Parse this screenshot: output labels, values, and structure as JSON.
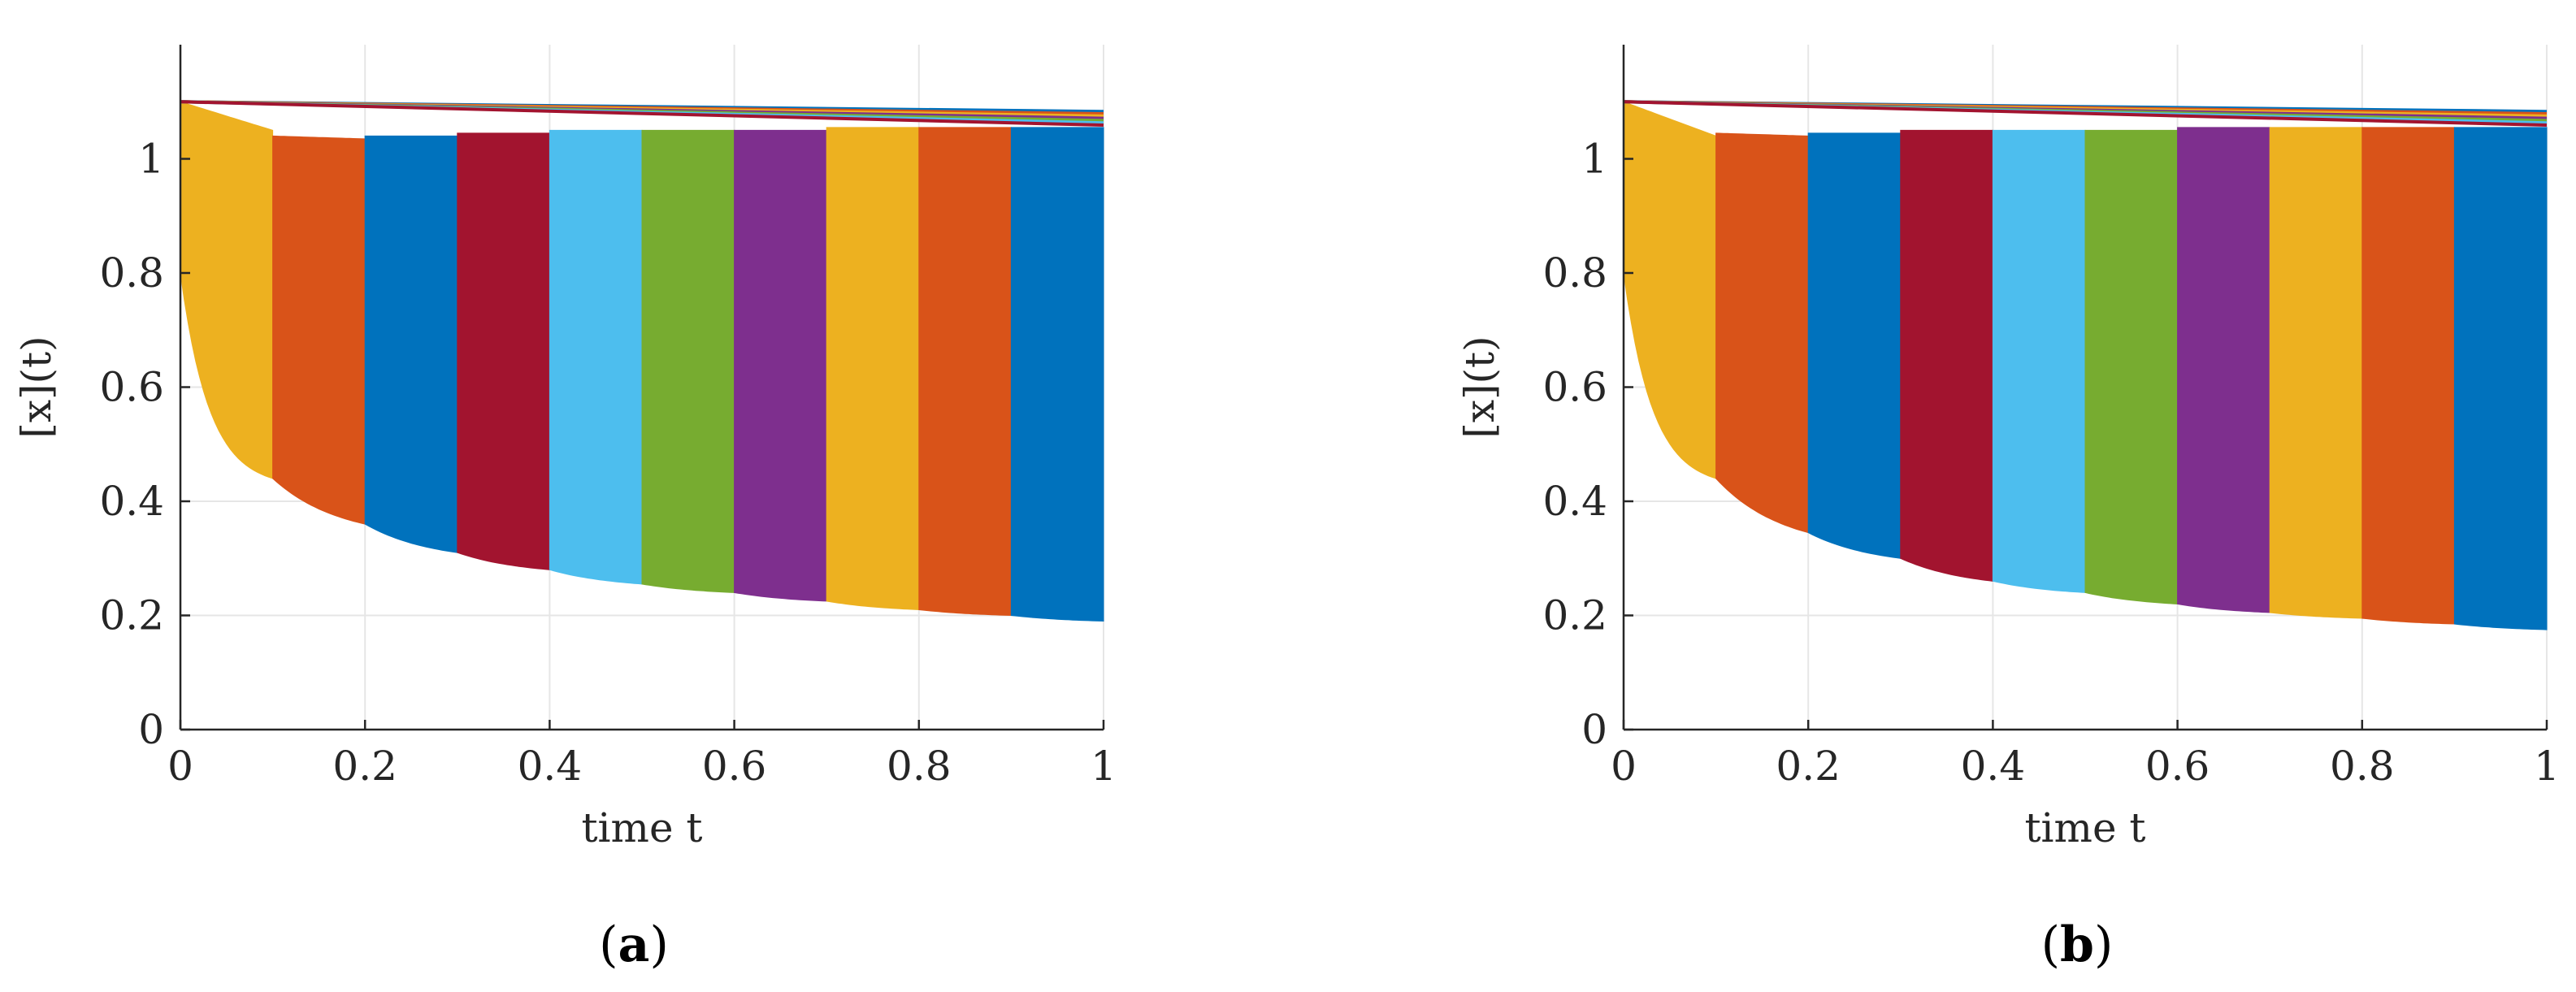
{
  "panels": [
    {
      "id": "a",
      "label_open": "(",
      "label_letter": "a",
      "label_close": ")"
    },
    {
      "id": "b",
      "label_open": "(",
      "label_letter": "b",
      "label_close": ")"
    }
  ],
  "chart_data": [
    {
      "type": "area",
      "panel": "a",
      "xlabel": "time t",
      "ylabel": "[x](t)",
      "xlim": [
        0,
        1
      ],
      "ylim": [
        0,
        1.2
      ],
      "xticks": [
        "0",
        "0.2",
        "0.4",
        "0.6",
        "0.8",
        "1"
      ],
      "yticks": [
        "0",
        "0.2",
        "0.4",
        "0.6",
        "0.8",
        "1"
      ],
      "grid": true,
      "bands": [
        {
          "t0": 0.0,
          "t1": 0.1,
          "upper": [
            1.1,
            1.05
          ],
          "lower": [
            0.8,
            0.44
          ],
          "color": "#EDB120"
        },
        {
          "t0": 0.1,
          "t1": 0.2,
          "upper": [
            1.04,
            1.035
          ],
          "lower": [
            0.44,
            0.36
          ],
          "color": "#D95319"
        },
        {
          "t0": 0.2,
          "t1": 0.3,
          "upper": [
            1.04,
            1.04
          ],
          "lower": [
            0.36,
            0.31
          ],
          "color": "#0072BD"
        },
        {
          "t0": 0.3,
          "t1": 0.4,
          "upper": [
            1.045,
            1.045
          ],
          "lower": [
            0.31,
            0.28
          ],
          "color": "#A2142F"
        },
        {
          "t0": 0.4,
          "t1": 0.5,
          "upper": [
            1.05,
            1.05
          ],
          "lower": [
            0.28,
            0.255
          ],
          "color": "#4DBEEE"
        },
        {
          "t0": 0.5,
          "t1": 0.6,
          "upper": [
            1.05,
            1.05
          ],
          "lower": [
            0.255,
            0.24
          ],
          "color": "#77AC30"
        },
        {
          "t0": 0.6,
          "t1": 0.7,
          "upper": [
            1.05,
            1.05
          ],
          "lower": [
            0.24,
            0.225
          ],
          "color": "#7E2F8E"
        },
        {
          "t0": 0.7,
          "t1": 0.8,
          "upper": [
            1.055,
            1.055
          ],
          "lower": [
            0.225,
            0.21
          ],
          "color": "#EDB120"
        },
        {
          "t0": 0.8,
          "t1": 0.9,
          "upper": [
            1.055,
            1.055
          ],
          "lower": [
            0.21,
            0.2
          ],
          "color": "#D95319"
        },
        {
          "t0": 0.9,
          "t1": 1.0,
          "upper": [
            1.055,
            1.055
          ],
          "lower": [
            0.2,
            0.19
          ],
          "color": "#0072BD"
        }
      ],
      "envelope_top": [
        1.1,
        1.055
      ]
    },
    {
      "type": "area",
      "panel": "b",
      "xlabel": "time t",
      "ylabel": "[x](t)",
      "xlim": [
        0,
        1
      ],
      "ylim": [
        0,
        1.2
      ],
      "xticks": [
        "0",
        "0.2",
        "0.4",
        "0.6",
        "0.8",
        "1"
      ],
      "yticks": [
        "0",
        "0.2",
        "0.4",
        "0.6",
        "0.8",
        "1"
      ],
      "grid": true,
      "bands": [
        {
          "t0": 0.0,
          "t1": 0.1,
          "upper": [
            1.1,
            1.04
          ],
          "lower": [
            0.8,
            0.44
          ],
          "color": "#EDB120"
        },
        {
          "t0": 0.1,
          "t1": 0.2,
          "upper": [
            1.045,
            1.04
          ],
          "lower": [
            0.44,
            0.345
          ],
          "color": "#D95319"
        },
        {
          "t0": 0.2,
          "t1": 0.3,
          "upper": [
            1.045,
            1.045
          ],
          "lower": [
            0.345,
            0.3
          ],
          "color": "#0072BD"
        },
        {
          "t0": 0.3,
          "t1": 0.4,
          "upper": [
            1.05,
            1.05
          ],
          "lower": [
            0.3,
            0.26
          ],
          "color": "#A2142F"
        },
        {
          "t0": 0.4,
          "t1": 0.5,
          "upper": [
            1.05,
            1.05
          ],
          "lower": [
            0.26,
            0.24
          ],
          "color": "#4DBEEE"
        },
        {
          "t0": 0.5,
          "t1": 0.6,
          "upper": [
            1.05,
            1.05
          ],
          "lower": [
            0.24,
            0.22
          ],
          "color": "#77AC30"
        },
        {
          "t0": 0.6,
          "t1": 0.7,
          "upper": [
            1.055,
            1.055
          ],
          "lower": [
            0.22,
            0.205
          ],
          "color": "#7E2F8E"
        },
        {
          "t0": 0.7,
          "t1": 0.8,
          "upper": [
            1.055,
            1.055
          ],
          "lower": [
            0.205,
            0.195
          ],
          "color": "#EDB120"
        },
        {
          "t0": 0.8,
          "t1": 0.9,
          "upper": [
            1.055,
            1.055
          ],
          "lower": [
            0.195,
            0.185
          ],
          "color": "#D95319"
        },
        {
          "t0": 0.9,
          "t1": 1.0,
          "upper": [
            1.055,
            1.055
          ],
          "lower": [
            0.185,
            0.175
          ],
          "color": "#0072BD"
        }
      ],
      "envelope_top": [
        1.1,
        1.055
      ]
    }
  ]
}
